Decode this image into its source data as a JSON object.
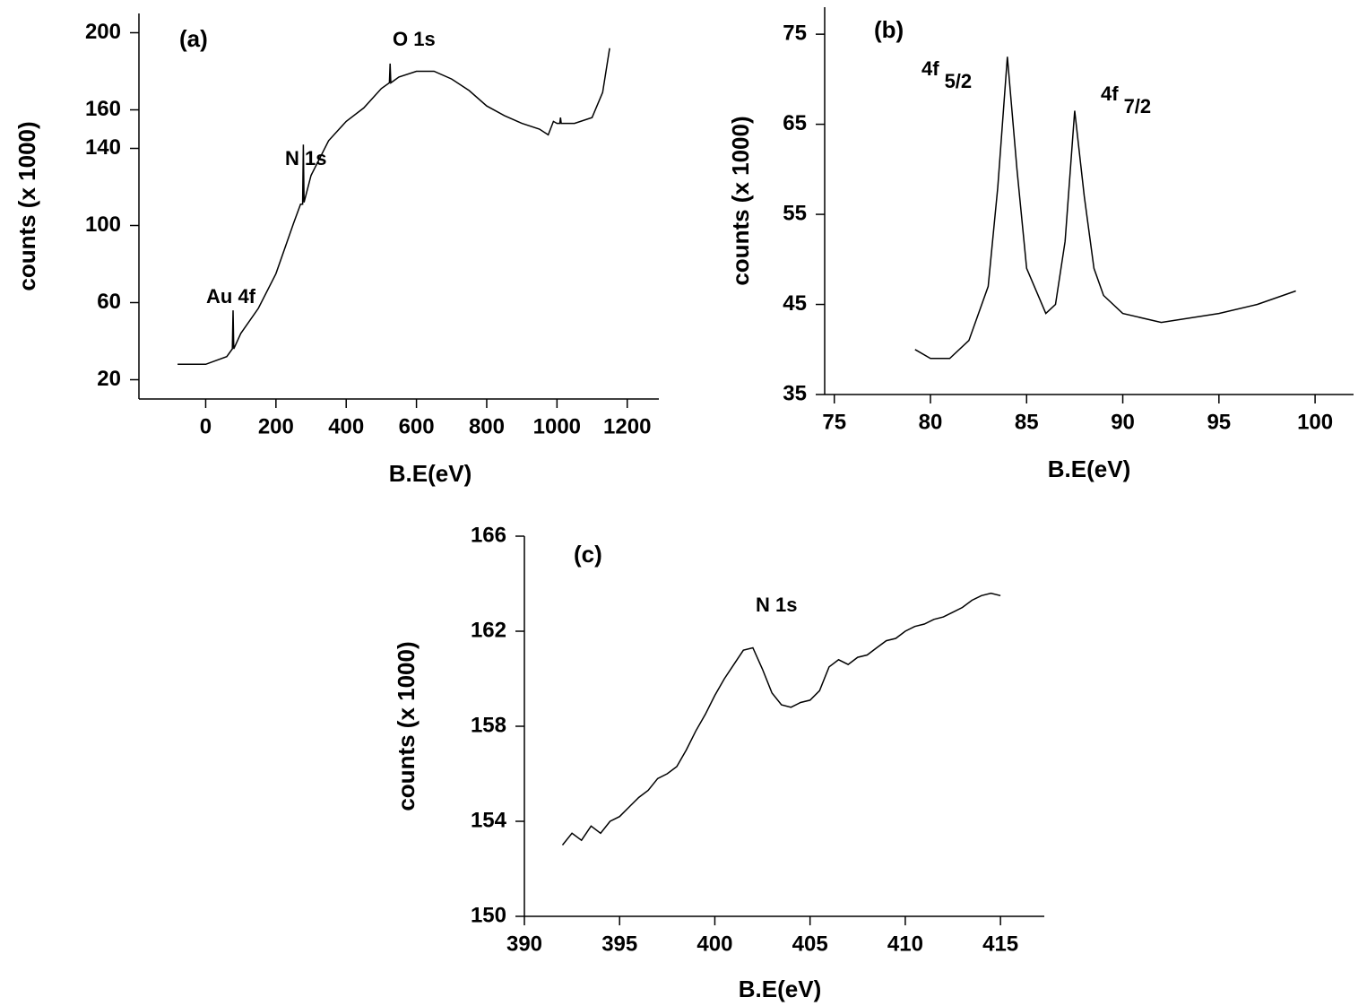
{
  "chart_data": [
    {
      "type": "line",
      "title": "(a)",
      "xlabel": "B.E(eV)",
      "ylabel": "counts (x 1000)",
      "color": "#000000",
      "annotations": [
        {
          "text": "Au 4f"
        },
        {
          "text": "N 1s"
        },
        {
          "text": "O 1s"
        }
      ],
      "x": [
        -80,
        0,
        60,
        76,
        78,
        80,
        100,
        150,
        200,
        250,
        270,
        276,
        278,
        280,
        300,
        350,
        400,
        450,
        500,
        523,
        525,
        527,
        550,
        600,
        650,
        700,
        750,
        800,
        850,
        900,
        950,
        975,
        990,
        1000,
        1008,
        1010,
        1012,
        1050,
        1100,
        1130,
        1150
      ],
      "values": [
        28,
        28,
        32,
        36,
        56,
        36,
        44,
        57,
        75,
        101,
        111,
        111,
        142,
        112,
        126,
        144,
        154,
        161,
        171,
        174,
        184,
        174,
        177,
        180,
        180,
        176,
        170,
        162,
        157,
        153,
        150,
        147,
        154,
        153,
        153,
        156,
        153,
        153,
        156,
        169,
        192
      ],
      "xlim": [
        -190,
        1290
      ],
      "xticks": [
        0,
        200,
        400,
        600,
        800,
        1000,
        1200
      ],
      "ylim": [
        10,
        210
      ],
      "yticks": [
        20,
        60,
        100,
        140,
        160,
        200
      ]
    },
    {
      "type": "line",
      "title": "(b)",
      "xlabel": "B.E(eV)",
      "ylabel": "counts (x 1000)",
      "color": "#000000",
      "annotations": [
        {
          "text": "4f",
          "sub": "5/2"
        },
        {
          "text": "4f",
          "sub": "7/2"
        }
      ],
      "x": [
        79.2,
        80,
        81,
        82,
        83,
        83.5,
        84,
        84.5,
        85,
        86,
        86.5,
        87,
        87.5,
        88,
        88.5,
        89,
        90,
        92,
        95,
        97,
        99
      ],
      "values": [
        40,
        39,
        39,
        41,
        47,
        58,
        72.5,
        60,
        49,
        44,
        45,
        52,
        66.5,
        57,
        49,
        46,
        44,
        43,
        44,
        45,
        46.5
      ],
      "xlim": [
        74.5,
        102
      ],
      "xticks": [
        75,
        80,
        85,
        90,
        95,
        100
      ],
      "ylim": [
        35,
        78
      ],
      "yticks": [
        35,
        45,
        55,
        65,
        75
      ]
    },
    {
      "type": "line",
      "title": "(c)",
      "xlabel": "B.E(eV)",
      "ylabel": "counts (x 1000)",
      "color": "#000000",
      "annotations": [
        {
          "text": "N 1s"
        }
      ],
      "x": [
        392,
        392.5,
        393,
        393.5,
        394,
        394.5,
        395,
        395.5,
        396,
        396.5,
        397,
        397.5,
        398,
        398.5,
        399,
        399.5,
        400,
        400.5,
        401,
        401.5,
        402,
        402.5,
        403,
        403.5,
        404,
        404.5,
        405,
        405.5,
        406,
        406.5,
        407,
        407.5,
        408,
        408.5,
        409,
        409.5,
        410,
        410.5,
        411,
        411.5,
        412,
        412.5,
        413,
        413.5,
        414,
        414.5,
        415
      ],
      "values": [
        153,
        153.5,
        153.2,
        153.8,
        153.5,
        154,
        154.2,
        154.6,
        155,
        155.3,
        155.8,
        156,
        156.3,
        157,
        157.8,
        158.5,
        159.3,
        160,
        160.6,
        161.2,
        161.3,
        160.4,
        159.4,
        158.9,
        158.8,
        159,
        159.1,
        159.5,
        160.5,
        160.8,
        160.6,
        160.9,
        161,
        161.3,
        161.6,
        161.7,
        162,
        162.2,
        162.3,
        162.5,
        162.6,
        162.8,
        163,
        163.3,
        163.5,
        163.6,
        163.5
      ],
      "xlim": [
        390,
        417.3
      ],
      "xticks": [
        390,
        395,
        400,
        405,
        410,
        415
      ],
      "ylim": [
        150,
        166
      ],
      "yticks": [
        150,
        154,
        158,
        162,
        166
      ]
    }
  ]
}
